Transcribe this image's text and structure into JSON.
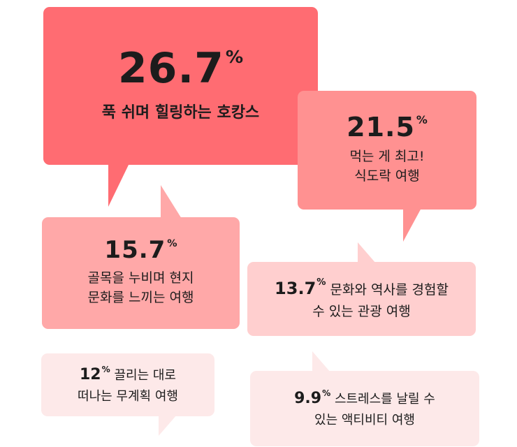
{
  "chart_data": {
    "type": "bubble-infographic",
    "items": [
      {
        "value": 26.7,
        "label": "푹 쉬며 힐링하는 호캉스",
        "color": "#ff6c72"
      },
      {
        "value": 21.5,
        "label": "먹는 게 최고!\n식도락 여행",
        "color": "#ff9191"
      },
      {
        "value": 15.7,
        "label": "골목을 누비며 현지\n문화를 느끼는 여행",
        "color": "#ffa8a8"
      },
      {
        "value": 13.7,
        "label": "문화와 역사를 경험할\n수 있는 관광 여행",
        "color": "#ffcfcf"
      },
      {
        "value": 12,
        "label": "끌리는 대로\n떠나는 무계획 여행",
        "color": "#fde9e9"
      },
      {
        "value": 9.9,
        "label": "스트레스를 날릴 수\n있는 액티비티 여행",
        "color": "#fde9e9"
      }
    ],
    "unit": "%"
  }
}
